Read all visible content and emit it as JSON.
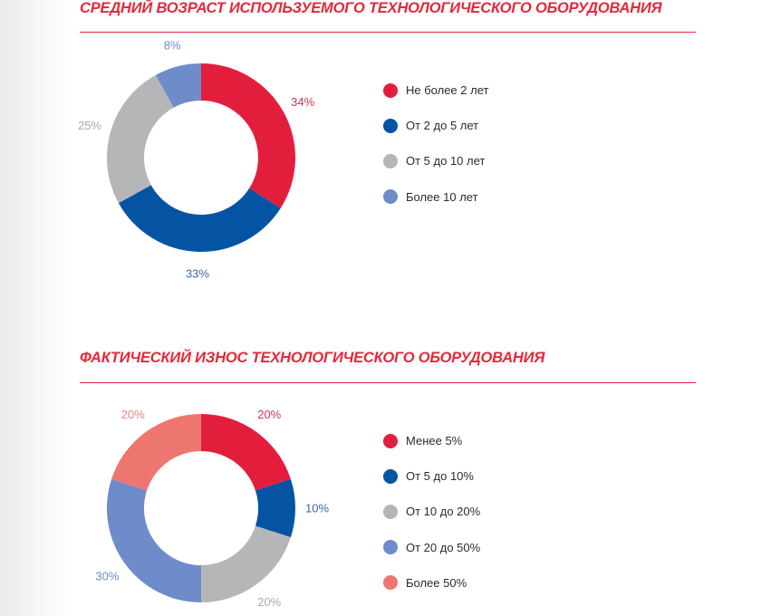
{
  "chart_data": [
    {
      "type": "pie",
      "title": "СРЕДНИЙ ВОЗРАСТ ИСПОЛЬЗУЕМОГО ТЕХНОЛОГИЧЕСКОГО ОБОРУДОВАНИЯ",
      "categories": [
        "Не более 2 лет",
        "От 2 до 5 лет",
        "От 5 до 10 лет",
        "Более 10 лет"
      ],
      "values": [
        34,
        33,
        25,
        8
      ],
      "labels": [
        "34%",
        "33%",
        "25%",
        "8%"
      ],
      "colors": [
        "#e31e3c",
        "#0554a4",
        "#b5b6b8",
        "#6d8cc9"
      ],
      "style": "donut",
      "legend_position": "right"
    },
    {
      "type": "pie",
      "title": "ФАКТИЧЕСКИЙ ИЗНОС ТЕХНОЛОГИЧЕСКОГО ОБОРУДОВАНИЯ",
      "categories": [
        "Менее 5%",
        "От 5 до 10%",
        "От 10 до 20%",
        "От 20 до 50%",
        "Более 50%"
      ],
      "values": [
        20,
        10,
        20,
        30,
        20
      ],
      "labels": [
        "20%",
        "10%",
        "20%",
        "30%",
        "20%"
      ],
      "colors": [
        "#e31e3c",
        "#0554a4",
        "#b5b6b8",
        "#6d8cc9",
        "#ee7670"
      ],
      "style": "donut",
      "legend_position": "right"
    }
  ]
}
